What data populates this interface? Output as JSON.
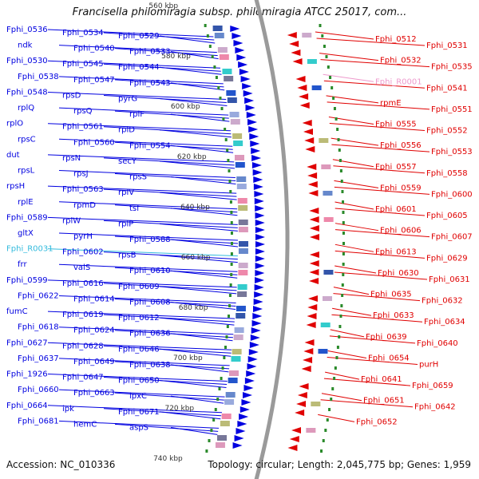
{
  "title": "Francisella philomiragia subsp. philomiragia ATCC 25017, com...",
  "accession_label": "Accession: NC_010336",
  "topology_label": "Topology: circular; Length: 2,045,775 bp; Genes: 1,959",
  "kbp_ticks": [
    "560 kbp",
    "580 kbp",
    "600 kbp",
    "620 kbp",
    "640 kbp",
    "660 kbp",
    "680 kbp",
    "700 kbp",
    "720 kbp",
    "740 kbp"
  ],
  "colors": {
    "forward_strand": "#0000e0",
    "reverse_strand": "#e00000",
    "rna_gene": "#33bbdd",
    "pseudo_gene": "#ee99cc",
    "backbone": "#9a9a9a",
    "gc_marks": "#2a8a2a"
  },
  "left_labels": [
    {
      "text": "Fphi_0536",
      "kind": "gene"
    },
    {
      "text": "Fphi_0534",
      "kind": "gene"
    },
    {
      "text": "Fphi_0529",
      "kind": "gene"
    },
    {
      "text": "ndk",
      "kind": "gene"
    },
    {
      "text": "Fphi_0540",
      "kind": "gene"
    },
    {
      "text": "Fphi_0533",
      "kind": "gene"
    },
    {
      "text": "Fphi_0530",
      "kind": "gene"
    },
    {
      "text": "Fphi_0545",
      "kind": "gene"
    },
    {
      "text": "Fphi_0544",
      "kind": "gene"
    },
    {
      "text": "Fphi_0538",
      "kind": "gene"
    },
    {
      "text": "Fphi_0547",
      "kind": "gene"
    },
    {
      "text": "Fphi_0543",
      "kind": "gene"
    },
    {
      "text": "Fphi_0548",
      "kind": "gene"
    },
    {
      "text": "rpsD",
      "kind": "gene"
    },
    {
      "text": "pyrG",
      "kind": "gene"
    },
    {
      "text": "rplQ",
      "kind": "gene"
    },
    {
      "text": "rpsQ",
      "kind": "gene"
    },
    {
      "text": "rplF",
      "kind": "gene"
    },
    {
      "text": "rplO",
      "kind": "gene"
    },
    {
      "text": "Fphi_0561",
      "kind": "gene"
    },
    {
      "text": "rplD",
      "kind": "gene"
    },
    {
      "text": "rpsC",
      "kind": "gene"
    },
    {
      "text": "Fphi_0560",
      "kind": "gene"
    },
    {
      "text": "Fphi_0554",
      "kind": "gene"
    },
    {
      "text": "dut",
      "kind": "gene"
    },
    {
      "text": "rpsN",
      "kind": "gene"
    },
    {
      "text": "secY",
      "kind": "gene"
    },
    {
      "text": "rpsL",
      "kind": "gene"
    },
    {
      "text": "rpsJ",
      "kind": "gene"
    },
    {
      "text": "rpsS",
      "kind": "gene"
    },
    {
      "text": "rpsH",
      "kind": "gene"
    },
    {
      "text": "Fphi_0563",
      "kind": "gene"
    },
    {
      "text": "rplV",
      "kind": "gene"
    },
    {
      "text": "rplE",
      "kind": "gene"
    },
    {
      "text": "rpmD",
      "kind": "gene"
    },
    {
      "text": "tsf",
      "kind": "gene"
    },
    {
      "text": "Fphi_0589",
      "kind": "gene"
    },
    {
      "text": "rplW",
      "kind": "gene"
    },
    {
      "text": "rplP",
      "kind": "gene"
    },
    {
      "text": "gltX",
      "kind": "gene"
    },
    {
      "text": "pyrH",
      "kind": "gene"
    },
    {
      "text": "Fphi_0588",
      "kind": "gene"
    },
    {
      "text": "Fphi_R0031",
      "kind": "rna"
    },
    {
      "text": "Fphi_0602",
      "kind": "gene"
    },
    {
      "text": "rpsB",
      "kind": "gene"
    },
    {
      "text": "frr",
      "kind": "gene"
    },
    {
      "text": "valS",
      "kind": "gene"
    },
    {
      "text": "Fphi_0610",
      "kind": "gene"
    },
    {
      "text": "Fphi_0599",
      "kind": "gene"
    },
    {
      "text": "Fphi_0616",
      "kind": "gene"
    },
    {
      "text": "Fphi_0609",
      "kind": "gene"
    },
    {
      "text": "Fphi_0622",
      "kind": "gene"
    },
    {
      "text": "Fphi_0614",
      "kind": "gene"
    },
    {
      "text": "Fphi_0608",
      "kind": "gene"
    },
    {
      "text": "fumC",
      "kind": "gene"
    },
    {
      "text": "Fphi_0619",
      "kind": "gene"
    },
    {
      "text": "Fphi_0612",
      "kind": "gene"
    },
    {
      "text": "Fphi_0618",
      "kind": "gene"
    },
    {
      "text": "Fphi_0624",
      "kind": "gene"
    },
    {
      "text": "Fphi_0636",
      "kind": "gene"
    },
    {
      "text": "Fphi_0627",
      "kind": "gene"
    },
    {
      "text": "Fphi_0628",
      "kind": "gene"
    },
    {
      "text": "Fphi_0646",
      "kind": "gene"
    },
    {
      "text": "Fphi_0637",
      "kind": "gene"
    },
    {
      "text": "Fphi_0649",
      "kind": "gene"
    },
    {
      "text": "Fphi_0638",
      "kind": "gene"
    },
    {
      "text": "Fphi_1926",
      "kind": "gene"
    },
    {
      "text": "Fphi_0647",
      "kind": "gene"
    },
    {
      "text": "Fphi_0650",
      "kind": "gene"
    },
    {
      "text": "Fphi_0660",
      "kind": "gene"
    },
    {
      "text": "Fphi_0663",
      "kind": "gene"
    },
    {
      "text": "lpxC",
      "kind": "gene"
    },
    {
      "text": "Fphi_0664",
      "kind": "gene"
    },
    {
      "text": "ipk",
      "kind": "gene"
    },
    {
      "text": "Fphi_0671",
      "kind": "gene"
    },
    {
      "text": "Fphi_0681",
      "kind": "gene"
    },
    {
      "text": "hemC",
      "kind": "gene"
    },
    {
      "text": "aspS",
      "kind": "gene"
    }
  ],
  "right_labels": [
    {
      "text": "Fphi_0512",
      "kind": "gene"
    },
    {
      "text": "Fphi_0531",
      "kind": "gene"
    },
    {
      "text": "Fphi_0532",
      "kind": "gene"
    },
    {
      "text": "Fphi_0535",
      "kind": "gene"
    },
    {
      "text": "Fphi_R0001",
      "kind": "pseudo"
    },
    {
      "text": "Fphi_0541",
      "kind": "gene"
    },
    {
      "text": "rpmE",
      "kind": "gene"
    },
    {
      "text": "Fphi_0551",
      "kind": "gene"
    },
    {
      "text": "Fphi_0555",
      "kind": "gene"
    },
    {
      "text": "Fphi_0552",
      "kind": "gene"
    },
    {
      "text": "Fphi_0556",
      "kind": "gene"
    },
    {
      "text": "Fphi_0553",
      "kind": "gene"
    },
    {
      "text": "Fphi_0557",
      "kind": "gene"
    },
    {
      "text": "Fphi_0558",
      "kind": "gene"
    },
    {
      "text": "Fphi_0559",
      "kind": "gene"
    },
    {
      "text": "Fphi_0600",
      "kind": "gene"
    },
    {
      "text": "Fphi_0601",
      "kind": "gene"
    },
    {
      "text": "Fphi_0605",
      "kind": "gene"
    },
    {
      "text": "Fphi_0606",
      "kind": "gene"
    },
    {
      "text": "Fphi_0607",
      "kind": "gene"
    },
    {
      "text": "Fphi_0613",
      "kind": "gene"
    },
    {
      "text": "Fphi_0629",
      "kind": "gene"
    },
    {
      "text": "Fphi_0630",
      "kind": "gene"
    },
    {
      "text": "Fphi_0631",
      "kind": "gene"
    },
    {
      "text": "Fphi_0635",
      "kind": "gene"
    },
    {
      "text": "Fphi_0632",
      "kind": "gene"
    },
    {
      "text": "Fphi_0633",
      "kind": "gene"
    },
    {
      "text": "Fphi_0634",
      "kind": "gene"
    },
    {
      "text": "Fphi_0639",
      "kind": "gene"
    },
    {
      "text": "Fphi_0640",
      "kind": "gene"
    },
    {
      "text": "Fphi_0654",
      "kind": "gene"
    },
    {
      "text": "purH",
      "kind": "gene"
    },
    {
      "text": "Fphi_0641",
      "kind": "gene"
    },
    {
      "text": "Fphi_0659",
      "kind": "gene"
    },
    {
      "text": "Fphi_0651",
      "kind": "gene"
    },
    {
      "text": "Fphi_0642",
      "kind": "gene"
    },
    {
      "text": "Fphi_0652",
      "kind": "gene"
    }
  ]
}
